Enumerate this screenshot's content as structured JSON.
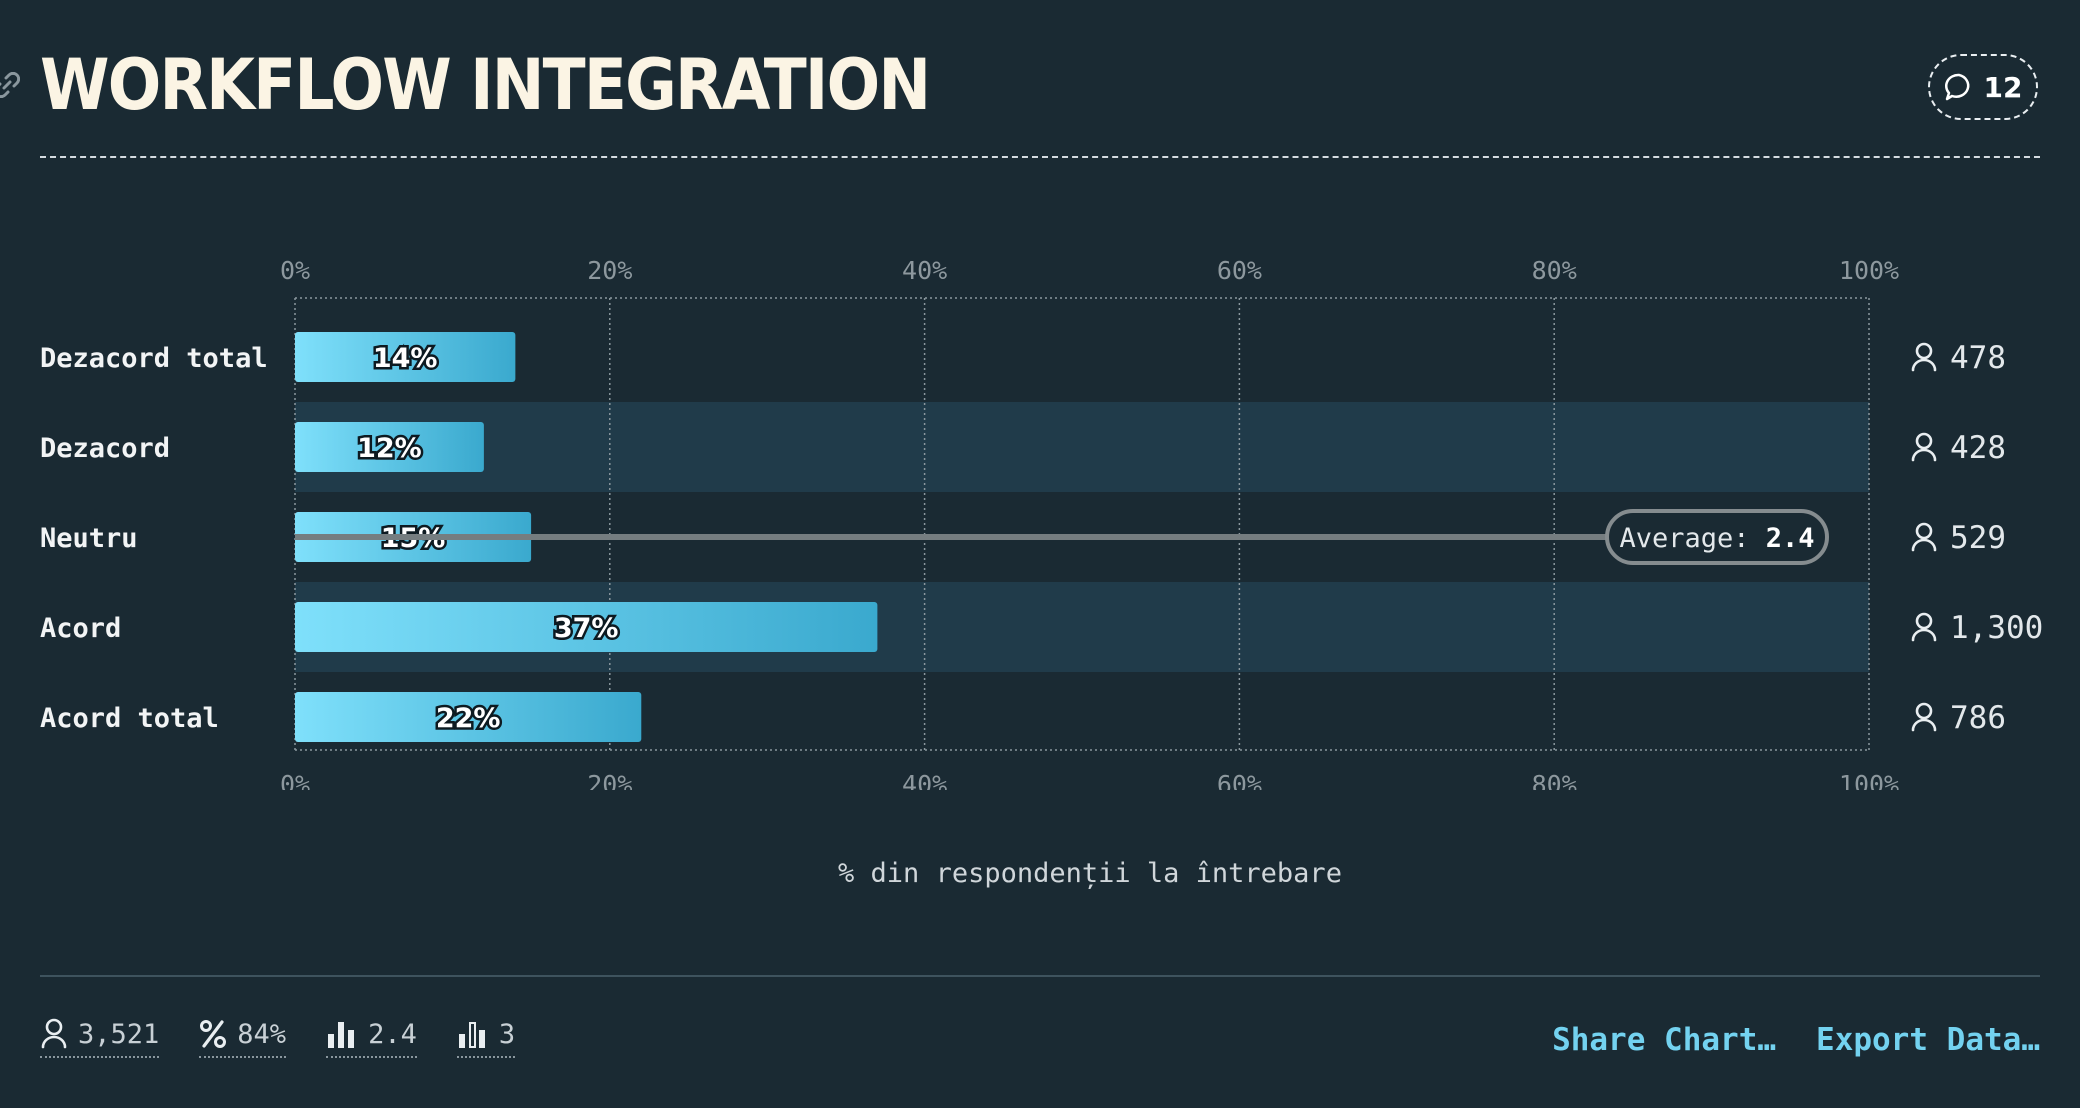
{
  "header": {
    "title": "WORKFLOW INTEGRATION",
    "comment_count": "12"
  },
  "chart_data": {
    "type": "bar",
    "orientation": "horizontal",
    "categories": [
      "Dezacord total",
      "Dezacord",
      "Neutru",
      "Acord",
      "Acord total"
    ],
    "values": [
      14,
      12,
      15,
      37,
      22
    ],
    "value_labels": [
      "14%",
      "12%",
      "15%",
      "37%",
      "22%"
    ],
    "respondents": [
      "478",
      "428",
      "529",
      "1,300",
      "786"
    ],
    "xlim": [
      0,
      100
    ],
    "xticks": [
      "0%",
      "20%",
      "40%",
      "60%",
      "80%",
      "100%"
    ],
    "xlabel": "% din respondenții la întrebare",
    "average": {
      "label": "Average:",
      "value": "2.4",
      "position": 2.5
    },
    "grid": true,
    "colors": {
      "bar_start": "#7fe0fb",
      "bar_end": "#3aa9ce",
      "band": "#203b4a",
      "grid": "#8a979e"
    }
  },
  "footer": {
    "stats": [
      {
        "icon": "person-icon",
        "value": "3,521"
      },
      {
        "icon": "percent-icon",
        "value": "84%"
      },
      {
        "icon": "bar-chart-icon",
        "value": "2.4"
      },
      {
        "icon": "bar-chart-outline-icon",
        "value": "3"
      }
    ],
    "share_label": "Share Chart…",
    "export_label": "Export Data…"
  }
}
